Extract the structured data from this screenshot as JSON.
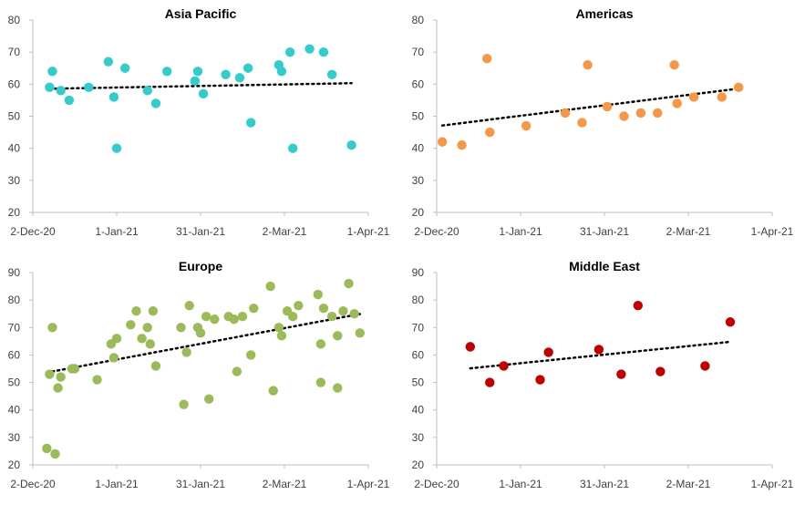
{
  "chart_data": [
    {
      "type": "scatter",
      "title": "Asia Pacific",
      "color": "#33CCCC",
      "trendline": "linear",
      "ylim": [
        20,
        80
      ],
      "yticks": [
        20,
        30,
        40,
        50,
        60,
        70,
        80
      ],
      "xlim": [
        "2020-12-02",
        "2021-04-01"
      ],
      "xtick_values": [
        "2020-12-02",
        "2021-01-01",
        "2021-01-31",
        "2021-03-02",
        "2021-04-01"
      ],
      "xtick_labels": [
        "2-Dec-20",
        "1-Jan-21",
        "31-Jan-21",
        "2-Mar-21",
        "1-Apr-21"
      ],
      "points": [
        {
          "x": "2020-12-08",
          "y": 59
        },
        {
          "x": "2020-12-09",
          "y": 64
        },
        {
          "x": "2020-12-12",
          "y": 58
        },
        {
          "x": "2020-12-15",
          "y": 55
        },
        {
          "x": "2020-12-22",
          "y": 59
        },
        {
          "x": "2020-12-29",
          "y": 67
        },
        {
          "x": "2020-12-31",
          "y": 56
        },
        {
          "x": "2021-01-01",
          "y": 40
        },
        {
          "x": "2021-01-04",
          "y": 65
        },
        {
          "x": "2021-01-12",
          "y": 58
        },
        {
          "x": "2021-01-15",
          "y": 54
        },
        {
          "x": "2021-01-19",
          "y": 64
        },
        {
          "x": "2021-01-29",
          "y": 61
        },
        {
          "x": "2021-01-30",
          "y": 64
        },
        {
          "x": "2021-02-01",
          "y": 57
        },
        {
          "x": "2021-02-09",
          "y": 63
        },
        {
          "x": "2021-02-14",
          "y": 62
        },
        {
          "x": "2021-02-17",
          "y": 65
        },
        {
          "x": "2021-02-18",
          "y": 48
        },
        {
          "x": "2021-02-28",
          "y": 66
        },
        {
          "x": "2021-03-01",
          "y": 64
        },
        {
          "x": "2021-03-04",
          "y": 70
        },
        {
          "x": "2021-03-05",
          "y": 40
        },
        {
          "x": "2021-03-11",
          "y": 71
        },
        {
          "x": "2021-03-16",
          "y": 70
        },
        {
          "x": "2021-03-19",
          "y": 63
        },
        {
          "x": "2021-03-26",
          "y": 41
        }
      ]
    },
    {
      "type": "scatter",
      "title": "Americas",
      "color": "#F79646",
      "trendline": "linear",
      "ylim": [
        20,
        80
      ],
      "yticks": [
        20,
        30,
        40,
        50,
        60,
        70,
        80
      ],
      "xlim": [
        "2020-12-02",
        "2021-04-01"
      ],
      "xtick_values": [
        "2020-12-02",
        "2021-01-01",
        "2021-01-31",
        "2021-03-02",
        "2021-04-01"
      ],
      "xtick_labels": [
        "2-Dec-20",
        "1-Jan-21",
        "31-Jan-21",
        "2-Mar-21",
        "1-Apr-21"
      ],
      "points": [
        {
          "x": "2020-12-04",
          "y": 42
        },
        {
          "x": "2020-12-11",
          "y": 41
        },
        {
          "x": "2020-12-20",
          "y": 68
        },
        {
          "x": "2020-12-21",
          "y": 45
        },
        {
          "x": "2021-01-03",
          "y": 47
        },
        {
          "x": "2021-01-17",
          "y": 51
        },
        {
          "x": "2021-01-23",
          "y": 48
        },
        {
          "x": "2021-01-25",
          "y": 66
        },
        {
          "x": "2021-02-01",
          "y": 53
        },
        {
          "x": "2021-02-07",
          "y": 50
        },
        {
          "x": "2021-02-13",
          "y": 51
        },
        {
          "x": "2021-02-19",
          "y": 51
        },
        {
          "x": "2021-02-25",
          "y": 66
        },
        {
          "x": "2021-02-26",
          "y": 54
        },
        {
          "x": "2021-03-04",
          "y": 56
        },
        {
          "x": "2021-03-14",
          "y": 56
        },
        {
          "x": "2021-03-20",
          "y": 59
        }
      ]
    },
    {
      "type": "scatter",
      "title": "Europe",
      "color": "#9BBB59",
      "trendline": "linear",
      "ylim": [
        20,
        90
      ],
      "yticks": [
        20,
        30,
        40,
        50,
        60,
        70,
        80,
        90
      ],
      "xlim": [
        "2020-12-02",
        "2021-04-01"
      ],
      "xtick_values": [
        "2020-12-02",
        "2021-01-01",
        "2021-01-31",
        "2021-03-02",
        "2021-04-01"
      ],
      "xtick_labels": [
        "2-Dec-20",
        "1-Jan-21",
        "31-Jan-21",
        "2-Mar-21",
        "1-Apr-21"
      ],
      "points": [
        {
          "x": "2020-12-07",
          "y": 26
        },
        {
          "x": "2020-12-08",
          "y": 53
        },
        {
          "x": "2020-12-09",
          "y": 70
        },
        {
          "x": "2020-12-10",
          "y": 24
        },
        {
          "x": "2020-12-11",
          "y": 48
        },
        {
          "x": "2020-12-12",
          "y": 52
        },
        {
          "x": "2020-12-16",
          "y": 55
        },
        {
          "x": "2020-12-17",
          "y": 55
        },
        {
          "x": "2020-12-25",
          "y": 51
        },
        {
          "x": "2020-12-30",
          "y": 64
        },
        {
          "x": "2020-12-31",
          "y": 59
        },
        {
          "x": "2021-01-01",
          "y": 66
        },
        {
          "x": "2021-01-06",
          "y": 71
        },
        {
          "x": "2021-01-08",
          "y": 76
        },
        {
          "x": "2021-01-10",
          "y": 66
        },
        {
          "x": "2021-01-12",
          "y": 70
        },
        {
          "x": "2021-01-13",
          "y": 64
        },
        {
          "x": "2021-01-14",
          "y": 76
        },
        {
          "x": "2021-01-15",
          "y": 56
        },
        {
          "x": "2021-01-24",
          "y": 70
        },
        {
          "x": "2021-01-25",
          "y": 42
        },
        {
          "x": "2021-01-26",
          "y": 61
        },
        {
          "x": "2021-01-27",
          "y": 78
        },
        {
          "x": "2021-01-30",
          "y": 70
        },
        {
          "x": "2021-01-31",
          "y": 68
        },
        {
          "x": "2021-02-02",
          "y": 74
        },
        {
          "x": "2021-02-03",
          "y": 44
        },
        {
          "x": "2021-02-05",
          "y": 73
        },
        {
          "x": "2021-02-10",
          "y": 74
        },
        {
          "x": "2021-02-12",
          "y": 73
        },
        {
          "x": "2021-02-13",
          "y": 54
        },
        {
          "x": "2021-02-15",
          "y": 74
        },
        {
          "x": "2021-02-18",
          "y": 60
        },
        {
          "x": "2021-02-19",
          "y": 77
        },
        {
          "x": "2021-02-25",
          "y": 85
        },
        {
          "x": "2021-02-26",
          "y": 47
        },
        {
          "x": "2021-02-28",
          "y": 70
        },
        {
          "x": "2021-03-01",
          "y": 67
        },
        {
          "x": "2021-03-03",
          "y": 76
        },
        {
          "x": "2021-03-05",
          "y": 74
        },
        {
          "x": "2021-03-07",
          "y": 78
        },
        {
          "x": "2021-03-14",
          "y": 82
        },
        {
          "x": "2021-03-15",
          "y": 50
        },
        {
          "x": "2021-03-15",
          "y": 64
        },
        {
          "x": "2021-03-16",
          "y": 77
        },
        {
          "x": "2021-03-19",
          "y": 74
        },
        {
          "x": "2021-03-21",
          "y": 67
        },
        {
          "x": "2021-03-21",
          "y": 48
        },
        {
          "x": "2021-03-23",
          "y": 76
        },
        {
          "x": "2021-03-25",
          "y": 86
        },
        {
          "x": "2021-03-27",
          "y": 75
        },
        {
          "x": "2021-03-29",
          "y": 68
        }
      ]
    },
    {
      "type": "scatter",
      "title": "Middle East",
      "color": "#C00000",
      "trendline": "linear",
      "ylim": [
        20,
        90
      ],
      "yticks": [
        20,
        30,
        40,
        50,
        60,
        70,
        80,
        90
      ],
      "xlim": [
        "2020-12-02",
        "2021-04-01"
      ],
      "xtick_values": [
        "2020-12-02",
        "2021-01-01",
        "2021-01-31",
        "2021-03-02",
        "2021-04-01"
      ],
      "xtick_labels": [
        "2-Dec-20",
        "1-Jan-21",
        "31-Jan-21",
        "2-Mar-21",
        "1-Apr-21"
      ],
      "points": [
        {
          "x": "2020-12-14",
          "y": 63
        },
        {
          "x": "2020-12-21",
          "y": 50
        },
        {
          "x": "2020-12-26",
          "y": 56
        },
        {
          "x": "2021-01-08",
          "y": 51
        },
        {
          "x": "2021-01-11",
          "y": 61
        },
        {
          "x": "2021-01-29",
          "y": 62
        },
        {
          "x": "2021-02-06",
          "y": 53
        },
        {
          "x": "2021-02-12",
          "y": 78
        },
        {
          "x": "2021-02-20",
          "y": 54
        },
        {
          "x": "2021-03-08",
          "y": 56
        },
        {
          "x": "2021-03-17",
          "y": 72
        }
      ]
    }
  ]
}
